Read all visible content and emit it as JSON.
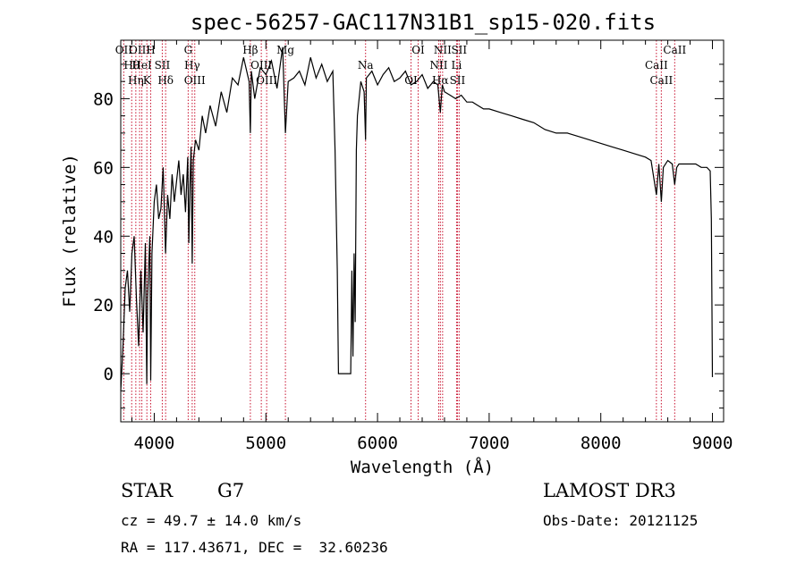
{
  "chart_data": {
    "type": "line",
    "title": "spec-56257-GAC117N31B1_sp15-020.fits",
    "xlabel": "Wavelength (Å)",
    "ylabel": "Flux (relative)",
    "xlim": [
      3700,
      9100
    ],
    "ylim": [
      -14,
      97
    ],
    "xticks": [
      4000,
      5000,
      6000,
      7000,
      8000,
      9000
    ],
    "yticks": [
      0,
      20,
      40,
      60,
      80
    ],
    "series": [
      {
        "name": "flux",
        "x": [
          3700,
          3720,
          3740,
          3760,
          3780,
          3800,
          3820,
          3840,
          3860,
          3880,
          3900,
          3920,
          3933,
          3940,
          3960,
          3968,
          3980,
          4000,
          4020,
          4040,
          4060,
          4080,
          4101,
          4120,
          4140,
          4160,
          4180,
          4200,
          4220,
          4240,
          4260,
          4280,
          4300,
          4310,
          4320,
          4330,
          4340,
          4350,
          4370,
          4400,
          4430,
          4460,
          4500,
          4550,
          4600,
          4650,
          4700,
          4750,
          4800,
          4850,
          4861,
          4870,
          4900,
          4950,
          5000,
          5050,
          5100,
          5150,
          5175,
          5200,
          5250,
          5300,
          5350,
          5400,
          5450,
          5500,
          5550,
          5600,
          5620,
          5640,
          5650,
          5700,
          5760,
          5770,
          5780,
          5790,
          5800,
          5810,
          5820,
          5850,
          5880,
          5893,
          5900,
          5950,
          6000,
          6050,
          6100,
          6150,
          6200,
          6250,
          6300,
          6350,
          6400,
          6450,
          6500,
          6540,
          6563,
          6580,
          6600,
          6650,
          6700,
          6750,
          6800,
          6850,
          6900,
          6950,
          7000,
          7100,
          7200,
          7300,
          7400,
          7500,
          7600,
          7700,
          7800,
          7900,
          8000,
          8100,
          8200,
          8300,
          8400,
          8450,
          8498,
          8520,
          8542,
          8560,
          8600,
          8640,
          8662,
          8680,
          8700,
          8750,
          8800,
          8850,
          8900,
          8950,
          8980,
          8990,
          9000
        ],
        "values": [
          -5,
          8,
          25,
          30,
          18,
          35,
          40,
          22,
          8,
          30,
          12,
          38,
          -3,
          22,
          40,
          -2,
          35,
          50,
          55,
          45,
          48,
          60,
          35,
          52,
          45,
          58,
          50,
          56,
          62,
          52,
          58,
          47,
          63,
          38,
          55,
          66,
          32,
          62,
          68,
          65,
          75,
          70,
          78,
          72,
          82,
          76,
          86,
          84,
          92,
          85,
          70,
          88,
          80,
          89,
          87,
          91,
          83,
          95,
          70,
          85,
          86,
          88,
          84,
          92,
          86,
          90,
          85,
          88,
          65,
          30,
          0,
          0,
          0,
          30,
          5,
          35,
          15,
          65,
          75,
          85,
          82,
          68,
          86,
          88,
          84,
          87,
          89,
          85,
          86,
          88,
          84,
          85,
          87,
          83,
          85,
          84,
          76,
          84,
          82,
          81,
          80,
          81,
          79,
          79,
          78,
          77,
          77,
          76,
          75,
          74,
          73,
          71,
          70,
          70,
          69,
          68,
          67,
          66,
          65,
          64,
          63,
          62,
          52,
          61,
          50,
          60,
          62,
          61,
          55,
          60,
          61,
          61,
          61,
          61,
          60,
          60,
          59,
          45,
          -1
        ]
      }
    ],
    "line_markers": [
      {
        "label": "OII",
        "x": 3727
      },
      {
        "label": "Hθ",
        "x": 3798
      },
      {
        "label": "Hη",
        "x": 3835
      },
      {
        "label": "OIII",
        "x": 3869
      },
      {
        "label": "HeI",
        "x": 3889
      },
      {
        "label": "K",
        "x": 3934
      },
      {
        "label": "H",
        "x": 3968
      },
      {
        "label": "SII",
        "x": 4072
      },
      {
        "label": "Hδ",
        "x": 4102
      },
      {
        "label": "G",
        "x": 4304
      },
      {
        "label": "Hγ",
        "x": 4340
      },
      {
        "label": "OIII",
        "x": 4363
      },
      {
        "label": "Hβ",
        "x": 4861
      },
      {
        "label": "OIII",
        "x": 4959
      },
      {
        "label": "OIII",
        "x": 5007
      },
      {
        "label": "Mg",
        "x": 5175
      },
      {
        "label": "Na",
        "x": 5893
      },
      {
        "label": "OI",
        "x": 6300
      },
      {
        "label": "OI",
        "x": 6364
      },
      {
        "label": "NII",
        "x": 6548
      },
      {
        "label": "Hα",
        "x": 6563
      },
      {
        "label": "NII",
        "x": 6583
      },
      {
        "label": "Li",
        "x": 6708
      },
      {
        "label": "SII",
        "x": 6716
      },
      {
        "label": "SII",
        "x": 6731
      },
      {
        "label": "CaII",
        "x": 8498
      },
      {
        "label": "CaII",
        "x": 8542
      },
      {
        "label": "CaII",
        "x": 8662
      }
    ]
  },
  "info": {
    "object_class": "STAR",
    "subclass": "G7",
    "redshift": "cz = 49.7 ± 14.0 km/s",
    "coordinates": "RA = 117.43671, DEC =  32.60236",
    "survey": "LAMOST DR3",
    "obs_date": "Obs-Date: 20121125"
  },
  "colors": {
    "spectrum": "#000000",
    "markers": "#c8102e",
    "background": "#ffffff"
  }
}
